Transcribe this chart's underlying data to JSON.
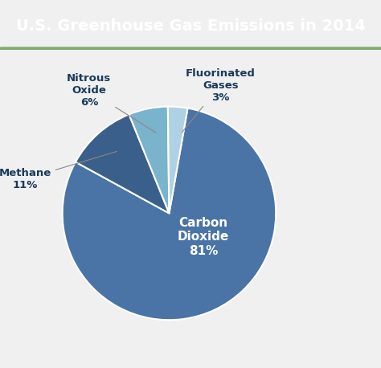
{
  "title": "U.S. Greenhouse Gas Emissions in 2014",
  "title_bg_color1": "#7dba6a",
  "title_bg_color2": "#4d8a3a",
  "title_text_color": "#ffffff",
  "chart_bg_color": "#f0f0f0",
  "slices": [
    {
      "label": "Carbon\nDioxide",
      "pct_label": "81%",
      "value": 81,
      "color": "#4a74a5",
      "label_inside": true
    },
    {
      "label": "Methane",
      "pct_label": "11%",
      "value": 11,
      "color": "#3a5f8a",
      "label_inside": false
    },
    {
      "label": "Nitrous\nOxide",
      "pct_label": "6%",
      "value": 6,
      "color": "#7ab3cc",
      "label_inside": false
    },
    {
      "label": "Fluorinated\nGases",
      "pct_label": "3%",
      "value": 3,
      "color": "#b0d0e5",
      "label_inside": false
    }
  ],
  "figsize": [
    4.74,
    4.58
  ],
  "dpi": 100
}
